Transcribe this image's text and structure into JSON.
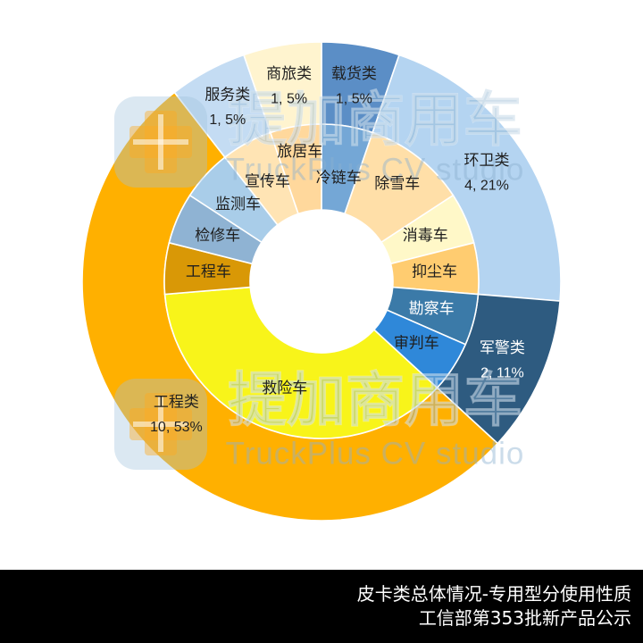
{
  "chart_data": {
    "type": "pie",
    "categories": [
      {
        "label": "载货类",
        "value": 1,
        "data_label": "1, 5%",
        "color": "#5b8ec6",
        "text_color": "#1f1f1f",
        "children": [
          {
            "label": "冷链车",
            "value": 1,
            "color": "#74a7d6",
            "text_color": "#1f1f1f"
          }
        ]
      },
      {
        "label": "环卫类",
        "value": 4,
        "data_label": "4, 21%",
        "color": "#b4d4f1",
        "text_color": "#1f1f1f",
        "children": [
          {
            "label": "除雪车",
            "value": 2,
            "color": "#ffdfa8",
            "text_color": "#1f1f1f"
          },
          {
            "label": "消毒车",
            "value": 1,
            "color": "#fff8c8",
            "text_color": "#1f1f1f"
          },
          {
            "label": "抑尘车",
            "value": 1,
            "color": "#ffcc70",
            "text_color": "#1f1f1f"
          }
        ]
      },
      {
        "label": "军警类",
        "value": 2,
        "data_label": "2, 11%",
        "color": "#2e5b80",
        "text_color": "#ffffff",
        "children": [
          {
            "label": "勘察车",
            "value": 1,
            "color": "#3b7aa8",
            "text_color": "#ffffff"
          },
          {
            "label": "审判车",
            "value": 1,
            "color": "#2f88d9",
            "text_color": "#1f1f1f"
          }
        ]
      },
      {
        "label": "工程类",
        "value": 10,
        "data_label": "10, 53%",
        "color": "#ffb000",
        "text_color": "#1f1f1f",
        "children": [
          {
            "label": "救险车",
            "value": 7,
            "color": "#f8f41a",
            "text_color": "#1f1f1f"
          },
          {
            "label": "工程车",
            "value": 1,
            "color": "#d99806",
            "text_color": "#1f1f1f"
          },
          {
            "label": "检修车",
            "value": 1,
            "color": "#8fb3d3",
            "text_color": "#1f1f1f"
          },
          {
            "label": "监测车",
            "value": 1,
            "color": "#a9cde9",
            "text_color": "#1f1f1f"
          }
        ]
      },
      {
        "label": "服务类",
        "value": 1,
        "data_label": "1, 5%",
        "color": "#c4dcf3",
        "text_color": "#1f1f1f",
        "children": [
          {
            "label": "宣传车",
            "value": 1,
            "color": "#ffe4b4",
            "text_color": "#1f1f1f"
          }
        ]
      },
      {
        "label": "商旅类",
        "value": 1,
        "data_label": "1, 5%",
        "color": "#fff4cf",
        "text_color": "#1f1f1f",
        "children": [
          {
            "label": "旅居车",
            "value": 1,
            "color": "#ffd89c",
            "text_color": "#1f1f1f"
          }
        ]
      }
    ]
  },
  "watermark": {
    "brand_cn": "提加商用车",
    "brand_en": "TruckPlus CV studio",
    "logo_icon": "truckplus-logo-icon"
  },
  "footer": {
    "line1": "皮卡类总体情况-专用型分使用性质",
    "line2": "工信部第353批新产品公示"
  }
}
